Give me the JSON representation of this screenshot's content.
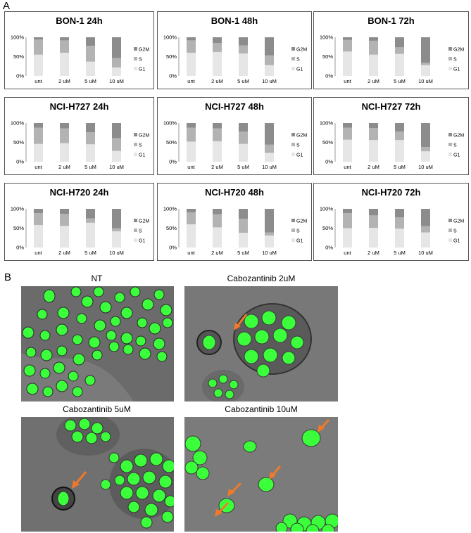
{
  "panel_labels": {
    "a": "A",
    "b": "B"
  },
  "legend": [
    "G2M",
    "S",
    "G1"
  ],
  "colors": {
    "G1": "#e6e6e6",
    "S": "#b3b3b3",
    "G2M": "#8c8c8c",
    "cell": "#3cff3c",
    "arrow": "#f07a2a"
  },
  "chart_data": [
    {
      "type": "bar",
      "stacked": true,
      "title": "BON-1 24h",
      "categories": [
        "unt",
        "2 uM",
        "5 uM",
        "10 uM"
      ],
      "yticks": [
        "0%",
        "50%",
        "100%"
      ],
      "ylim": [
        0,
        100
      ],
      "series": [
        {
          "name": "G1",
          "values": [
            55,
            60,
            37,
            22
          ]
        },
        {
          "name": "S",
          "values": [
            39,
            32,
            41,
            24
          ]
        },
        {
          "name": "G2M",
          "values": [
            6,
            8,
            22,
            54
          ]
        }
      ]
    },
    {
      "type": "bar",
      "stacked": true,
      "title": "BON-1 48h",
      "categories": [
        "unt",
        "2 uM",
        "5 uM",
        "10 uM"
      ],
      "yticks": [
        "0%",
        "50%",
        "100%"
      ],
      "ylim": [
        0,
        100
      ],
      "series": [
        {
          "name": "G1",
          "values": [
            60,
            62,
            58,
            28
          ]
        },
        {
          "name": "S",
          "values": [
            32,
            23,
            21,
            25
          ]
        },
        {
          "name": "G2M",
          "values": [
            8,
            15,
            21,
            47
          ]
        }
      ]
    },
    {
      "type": "bar",
      "stacked": true,
      "title": "BON-1 72h",
      "categories": [
        "unt",
        "2 uM",
        "5 uM",
        "10 uM"
      ],
      "yticks": [
        "0%",
        "50%",
        "100%"
      ],
      "ylim": [
        0,
        100
      ],
      "series": [
        {
          "name": "G1",
          "values": [
            63,
            55,
            57,
            28
          ]
        },
        {
          "name": "S",
          "values": [
            30,
            36,
            17,
            6
          ]
        },
        {
          "name": "G2M",
          "values": [
            7,
            9,
            26,
            66
          ]
        }
      ]
    },
    {
      "type": "bar",
      "stacked": true,
      "title": "NCI-H727 24h",
      "categories": [
        "unt",
        "2 uM",
        "5 uM",
        "10 uM"
      ],
      "yticks": [
        "0%",
        "50%",
        "100%"
      ],
      "ylim": [
        0,
        100
      ],
      "series": [
        {
          "name": "G1",
          "values": [
            46,
            48,
            45,
            28
          ]
        },
        {
          "name": "S",
          "values": [
            42,
            38,
            31,
            33
          ]
        },
        {
          "name": "G2M",
          "values": [
            12,
            14,
            24,
            39
          ]
        }
      ]
    },
    {
      "type": "bar",
      "stacked": true,
      "title": "NCI-H727 48h",
      "categories": [
        "unt",
        "2 uM",
        "5 uM",
        "10 uM"
      ],
      "yticks": [
        "0%",
        "50%",
        "100%"
      ],
      "ylim": [
        0,
        100
      ],
      "series": [
        {
          "name": "G1",
          "values": [
            52,
            53,
            46,
            23
          ]
        },
        {
          "name": "S",
          "values": [
            36,
            33,
            32,
            21
          ]
        },
        {
          "name": "G2M",
          "values": [
            12,
            14,
            22,
            56
          ]
        }
      ]
    },
    {
      "type": "bar",
      "stacked": true,
      "title": "NCI-H727 72h",
      "categories": [
        "unt",
        "2 uM",
        "5 uM",
        "10 uM"
      ],
      "yticks": [
        "0%",
        "50%",
        "100%"
      ],
      "ylim": [
        0,
        100
      ],
      "series": [
        {
          "name": "G1",
          "values": [
            57,
            56,
            56,
            27
          ]
        },
        {
          "name": "S",
          "values": [
            31,
            31,
            22,
            11
          ]
        },
        {
          "name": "G2M",
          "values": [
            12,
            13,
            22,
            62
          ]
        }
      ]
    },
    {
      "type": "bar",
      "stacked": true,
      "title": "NCI-H720 24h",
      "categories": [
        "unt",
        "2 uM",
        "5 uM",
        "10 uM"
      ],
      "yticks": [
        "0%",
        "50%",
        "100%"
      ],
      "ylim": [
        0,
        100
      ],
      "series": [
        {
          "name": "G1",
          "values": [
            58,
            56,
            64,
            42
          ]
        },
        {
          "name": "S",
          "values": [
            31,
            31,
            11,
            8
          ]
        },
        {
          "name": "G2M",
          "values": [
            11,
            13,
            25,
            50
          ]
        }
      ]
    },
    {
      "type": "bar",
      "stacked": true,
      "title": "NCI-H720 48h",
      "categories": [
        "unt",
        "2 uM",
        "5 uM",
        "10 uM"
      ],
      "yticks": [
        "0%",
        "50%",
        "100%"
      ],
      "ylim": [
        0,
        100
      ],
      "series": [
        {
          "name": "G1",
          "values": [
            60,
            52,
            38,
            31
          ]
        },
        {
          "name": "S",
          "values": [
            31,
            34,
            36,
            8
          ]
        },
        {
          "name": "G2M",
          "values": [
            9,
            14,
            26,
            61
          ]
        }
      ]
    },
    {
      "type": "bar",
      "stacked": true,
      "title": "NCI-H720 72h",
      "categories": [
        "unt",
        "2 uM",
        "5 uM",
        "10 uM"
      ],
      "yticks": [
        "0%",
        "50%",
        "100%"
      ],
      "ylim": [
        0,
        100
      ],
      "series": [
        {
          "name": "G1",
          "values": [
            50,
            51,
            49,
            39
          ]
        },
        {
          "name": "S",
          "values": [
            39,
            32,
            29,
            16
          ]
        },
        {
          "name": "G2M",
          "values": [
            11,
            17,
            22,
            45
          ]
        }
      ]
    }
  ],
  "micrographs": [
    {
      "title": "NT"
    },
    {
      "title": "Cabozantinib 2uM"
    },
    {
      "title": "Cabozantinib 5uM"
    },
    {
      "title": "Cabozantinib 10uM"
    }
  ]
}
